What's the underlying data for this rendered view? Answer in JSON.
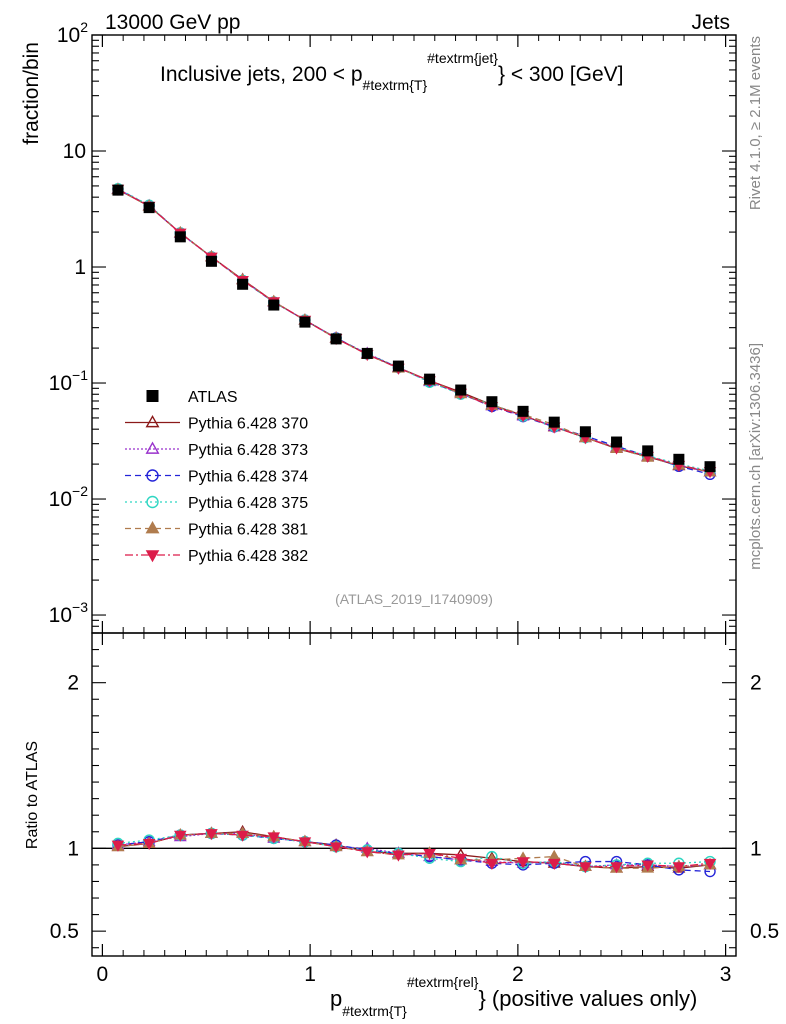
{
  "header": {
    "left_label": "13000 GeV pp",
    "right_label": "Jets"
  },
  "chart_data": {
    "type": "line",
    "title_parts": {
      "pre": "Inclusive jets, 200 < p",
      "sub": "#textrm{T}",
      "sup": "#textrm{jet}",
      "post": "} < 300 [GeV]"
    },
    "ylabel": "fraction/bin",
    "ratio_ylabel": "Ratio to ATLAS",
    "xlabel_parts": {
      "base": "p",
      "sub": "#textrm{T}",
      "sup": "#textrm{rel}",
      "post": "} (positive values only)"
    },
    "analysis_tag": "(ATLAS_2019_I1740909)",
    "side_label_top": "Rivet 4.1.0, ≥ 2.1M events",
    "side_label_bottom": "mcplots.cern.ch [arXiv:1306.3436]",
    "xlim": [
      -0.05,
      3.05
    ],
    "ylim": [
      0.0007,
      100
    ],
    "ratio_ylim": [
      0.35,
      2.3
    ],
    "x_ticks": [
      {
        "value": 0,
        "label": "0"
      },
      {
        "value": 1,
        "label": "1"
      },
      {
        "value": 2,
        "label": "2"
      },
      {
        "value": 3,
        "label": "3"
      }
    ],
    "y_ticks": [
      {
        "value": 100,
        "base": "10",
        "exp": "2"
      },
      {
        "value": 10,
        "base": "10",
        "exp": ""
      },
      {
        "value": 1,
        "base": "1",
        "exp": ""
      },
      {
        "value": 0.1,
        "base": "10",
        "exp": "−1"
      },
      {
        "value": 0.01,
        "base": "10",
        "exp": "−2"
      },
      {
        "value": 0.001,
        "base": "10",
        "exp": "−3"
      }
    ],
    "ratio_ticks": [
      {
        "value": 0.5,
        "label": "0.5"
      },
      {
        "value": 1,
        "label": "1"
      },
      {
        "value": 2,
        "label": "2"
      }
    ],
    "x": [
      0.075,
      0.225,
      0.375,
      0.525,
      0.675,
      0.825,
      0.975,
      1.125,
      1.275,
      1.425,
      1.575,
      1.725,
      1.875,
      2.025,
      2.175,
      2.325,
      2.475,
      2.625,
      2.775,
      2.925
    ],
    "data_series": {
      "name": "ATLAS",
      "values": [
        4.6,
        3.25,
        1.82,
        1.12,
        0.71,
        0.47,
        0.335,
        0.24,
        0.18,
        0.14,
        0.108,
        0.087,
        0.069,
        0.057,
        0.046,
        0.038,
        0.031,
        0.026,
        0.022,
        0.019
      ]
    },
    "series": [
      {
        "name": "Pythia 6.428 370",
        "color": "#8b1a1a",
        "dash": "",
        "marker": "triangle-open",
        "ratios": [
          1.01,
          1.03,
          1.08,
          1.09,
          1.1,
          1.07,
          1.04,
          1.02,
          0.98,
          0.97,
          0.97,
          0.96,
          0.94,
          0.92,
          0.91,
          0.89,
          0.88,
          0.89,
          0.88,
          0.9
        ]
      },
      {
        "name": "Pythia 6.428 373",
        "color": "#9932cc",
        "dash": "2,2",
        "marker": "triangle-open",
        "ratios": [
          1.02,
          1.04,
          1.07,
          1.09,
          1.09,
          1.06,
          1.04,
          1.01,
          1.0,
          0.97,
          0.95,
          0.93,
          0.92,
          0.91,
          0.92,
          0.89,
          0.9,
          0.9,
          0.89,
          0.9
        ]
      },
      {
        "name": "Pythia 6.428 374",
        "color": "#2424d8",
        "dash": "6,4",
        "marker": "circle-open",
        "ratios": [
          1.02,
          1.04,
          1.08,
          1.09,
          1.08,
          1.06,
          1.04,
          1.02,
          0.99,
          0.97,
          0.95,
          0.93,
          0.91,
          0.9,
          0.91,
          0.92,
          0.92,
          0.9,
          0.87,
          0.86
        ]
      },
      {
        "name": "Pythia 6.428 375",
        "color": "#2ed6c2",
        "dash": "2,3",
        "marker": "circle-open",
        "ratios": [
          1.03,
          1.05,
          1.08,
          1.09,
          1.08,
          1.06,
          1.04,
          1.01,
          0.99,
          0.97,
          0.94,
          0.92,
          0.95,
          0.91,
          0.92,
          0.89,
          0.9,
          0.91,
          0.91,
          0.92
        ]
      },
      {
        "name": "Pythia 6.428 381",
        "color": "#b07c4e",
        "dash": "6,4",
        "marker": "triangle-filled",
        "ratios": [
          1.01,
          1.03,
          1.08,
          1.09,
          1.09,
          1.07,
          1.04,
          1.01,
          0.98,
          0.96,
          0.97,
          0.93,
          0.93,
          0.94,
          0.95,
          0.89,
          0.88,
          0.88,
          0.89,
          0.9
        ]
      },
      {
        "name": "Pythia 6.428 382",
        "color": "#dc1c4a",
        "dash": "8,3,2,3",
        "marker": "triangle-down-filled",
        "ratios": [
          1.02,
          1.03,
          1.08,
          1.09,
          1.08,
          1.07,
          1.04,
          1.01,
          0.98,
          0.96,
          0.97,
          0.94,
          0.91,
          0.92,
          0.91,
          0.89,
          0.89,
          0.9,
          0.89,
          0.91
        ]
      }
    ]
  }
}
